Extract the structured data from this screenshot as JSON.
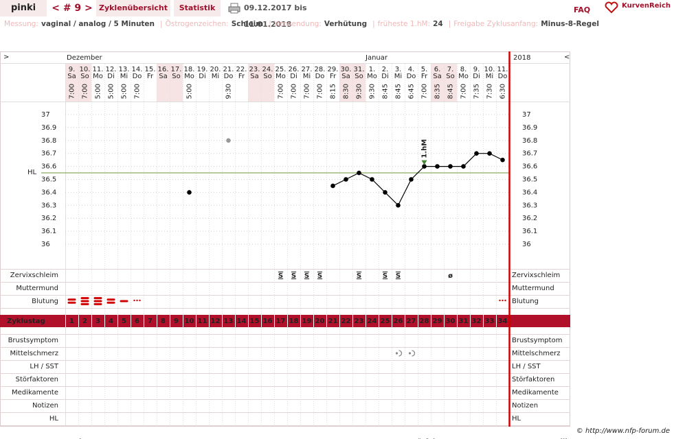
{
  "header": {
    "user": "pinki",
    "cycle": "< # 9 >",
    "tabs": [
      "Zyklenübersicht",
      "Statistik"
    ],
    "period": "09.12.2017 bis 11.01.2018",
    "faq": "FAQ",
    "logo": "KurvenReich"
  },
  "info": [
    {
      "label": "Messung:",
      "value": "vaginal / analog / 5 Minuten"
    },
    {
      "label": "Östrogenzeichen:",
      "value": "Schleim"
    },
    {
      "label": "Verwendung:",
      "value": "Verhütung"
    },
    {
      "label": "früheste 1.hM:",
      "value": "24"
    },
    {
      "label": "Freigabe Zyklusanfang:",
      "value": "Minus-8-Regel"
    }
  ],
  "info_separator": "|",
  "chart_data": {
    "type": "line",
    "nav": {
      "left": ">",
      "right": "<"
    },
    "months": [
      "Dezember",
      "Januar"
    ],
    "year": "2018",
    "days": [
      "9.",
      "10.",
      "11.",
      "12.",
      "13.",
      "14.",
      "15.",
      "16.",
      "17.",
      "18.",
      "19.",
      "20.",
      "21.",
      "22.",
      "23.",
      "24.",
      "25.",
      "26.",
      "27.",
      "28.",
      "29.",
      "30.",
      "31.",
      "1.",
      "2.",
      "3.",
      "4.",
      "5.",
      "6.",
      "7.",
      "8.",
      "9.",
      "10.",
      "11."
    ],
    "weekdays": [
      "Sa",
      "So",
      "Mo",
      "Di",
      "Mi",
      "Do",
      "Fr",
      "Sa",
      "So",
      "Mo",
      "Di",
      "Mi",
      "Do",
      "Fr",
      "Sa",
      "So",
      "Mo",
      "Di",
      "Mi",
      "Do",
      "Fr",
      "Sa",
      "So",
      "Mo",
      "Di",
      "Mi",
      "Do",
      "Fr",
      "Sa",
      "So",
      "Mo",
      "Di",
      "Mi",
      "Do"
    ],
    "times": [
      "7:00",
      "7:00",
      "5:00",
      "5:00",
      "5:00",
      "7:00",
      null,
      null,
      null,
      "5:00",
      null,
      null,
      "9:30",
      null,
      null,
      null,
      "7:00",
      "7:00",
      "7:00",
      "7:00",
      "8:15",
      "8:30",
      "9:30",
      "9:30",
      "8:45",
      "8:45",
      "6:45",
      "7:00",
      "8:35",
      "8:45",
      "7:00",
      "7:35",
      "7:30",
      "6:30"
    ],
    "ylim": [
      35.8,
      37.1
    ],
    "yticks": [
      36,
      36.1,
      36.2,
      36.3,
      36.4,
      36.5,
      36.6,
      36.7,
      36.8,
      36.9,
      37
    ],
    "grid": true,
    "series": [
      {
        "color": "#000000",
        "line": true,
        "values": [
          null,
          null,
          null,
          null,
          null,
          null,
          null,
          null,
          null,
          36.4,
          null,
          null,
          null,
          null,
          null,
          null,
          null,
          null,
          null,
          null,
          36.45,
          36.5,
          36.55,
          36.5,
          36.4,
          36.3,
          36.5,
          36.6,
          36.6,
          36.6,
          36.6,
          36.7,
          36.7,
          36.65
        ]
      },
      {
        "color": "#999999",
        "line": false,
        "values": [
          null,
          null,
          null,
          null,
          null,
          null,
          null,
          null,
          null,
          null,
          null,
          null,
          36.8,
          null,
          null,
          null,
          null,
          null,
          null,
          null,
          null,
          null,
          null,
          null,
          null,
          null,
          null,
          null,
          null,
          null,
          null,
          null,
          null,
          null
        ]
      }
    ],
    "cover_line": {
      "label": "HL",
      "value": 36.55,
      "color": "#6a9a3a"
    },
    "first_high": {
      "label": "1.hM",
      "day": 28,
      "color": "#4a8a3a"
    },
    "symptom_rows": [
      {
        "label": "Zervixschleim",
        "color": "#e8901e",
        "values": [
          null,
          null,
          null,
          null,
          null,
          null,
          null,
          null,
          null,
          null,
          null,
          null,
          null,
          null,
          null,
          null,
          "S",
          "S",
          "S",
          "S",
          null,
          null,
          "S",
          null,
          "S",
          "S",
          null,
          null,
          null,
          "ø",
          null,
          null,
          null,
          null
        ]
      },
      {
        "label": "Muttermund",
        "color": "#4a5fc0",
        "values": [
          null,
          null,
          null,
          null,
          null,
          null,
          null,
          null,
          null,
          null,
          null,
          null,
          null,
          null,
          null,
          null,
          null,
          null,
          null,
          null,
          null,
          null,
          null,
          null,
          null,
          null,
          null,
          null,
          null,
          null,
          null,
          null,
          null,
          null
        ]
      },
      {
        "label": "Blutung",
        "color": "#d00000",
        "values": [
          2,
          3,
          3,
          2,
          1,
          0,
          null,
          null,
          null,
          null,
          null,
          null,
          null,
          null,
          null,
          null,
          null,
          null,
          null,
          null,
          null,
          null,
          null,
          null,
          null,
          null,
          null,
          null,
          null,
          null,
          null,
          null,
          null,
          0
        ]
      }
    ],
    "cycle_day_label": "Zyklustag",
    "cycle_days": [
      1,
      2,
      3,
      4,
      5,
      6,
      7,
      8,
      9,
      10,
      11,
      12,
      13,
      14,
      15,
      16,
      17,
      18,
      19,
      20,
      21,
      22,
      23,
      24,
      25,
      26,
      27,
      28,
      29,
      30,
      31,
      32,
      33,
      34
    ],
    "extra_rows": [
      "Brustsymptom",
      "Mittelschmerz",
      "LH / SST",
      "Störfaktoren",
      "Medikamente",
      "Notizen",
      "HL"
    ],
    "mittelschmerz": [
      26,
      27
    ]
  },
  "footer": {
    "copyright": "© http://www.nfp-forum.de",
    "sections": [
      "Notizen",
      "Störfaktoren",
      "Medikamente"
    ]
  }
}
